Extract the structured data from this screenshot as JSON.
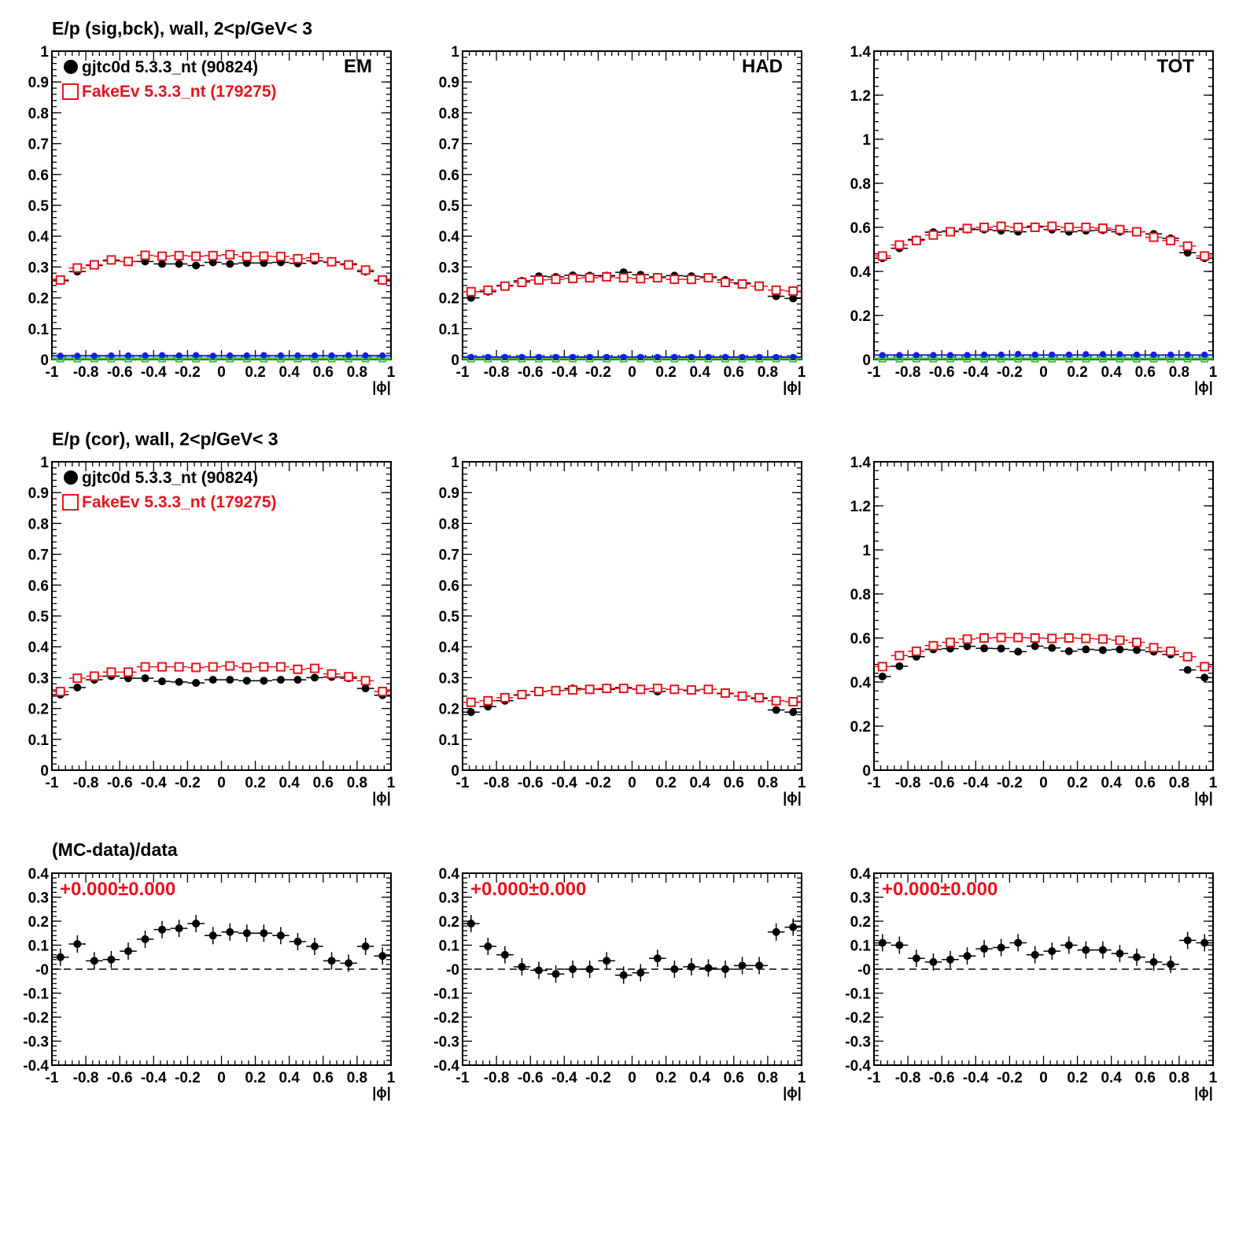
{
  "rows": [
    {
      "title": "E/p (sig,bck), wall,  2<p/GeV< 3"
    },
    {
      "title": "E/p (cor), wall,  2<p/GeV< 3"
    },
    {
      "title": "(MC-data)/data"
    }
  ],
  "x_axis": {
    "label": "|ϕ|",
    "ticks": [
      "-1",
      "-0.8",
      "-0.6",
      "-0.4",
      "-0.2",
      "0",
      "0.2",
      "0.4",
      "0.6",
      "0.8",
      "1"
    ],
    "range": [
      -1,
      1
    ]
  },
  "legend": {
    "data_label": "gjtc0d 5.3.3_nt (90824)",
    "mc_label": "FakeEv 5.3.3_nt (179275)"
  },
  "colors": {
    "data": "#000000",
    "mc": "#e8141e",
    "blue": "#1a1ae6",
    "green": "#2ec82e",
    "stat": "#e8141e"
  },
  "chart_data": [
    {
      "type": "scatter",
      "row": 0,
      "col": 0,
      "panel_label": "EM",
      "legend": true,
      "ylim": [
        0,
        1
      ],
      "yticks": [
        "0",
        "0.1",
        "0.2",
        "0.3",
        "0.4",
        "0.5",
        "0.6",
        "0.7",
        "0.8",
        "0.9",
        "1"
      ],
      "x": [
        -0.95,
        -0.85,
        -0.75,
        -0.65,
        -0.55,
        -0.45,
        -0.35,
        -0.25,
        -0.15,
        -0.05,
        0.05,
        0.15,
        0.25,
        0.35,
        0.45,
        0.55,
        0.65,
        0.75,
        0.85,
        0.95
      ],
      "series": [
        {
          "name": "gjtc0d 5.3.3_nt (90824)",
          "values": [
            0.255,
            0.285,
            0.305,
            0.32,
            0.318,
            0.318,
            0.31,
            0.31,
            0.305,
            0.315,
            0.31,
            0.313,
            0.313,
            0.315,
            0.312,
            0.32,
            0.315,
            0.31,
            0.285,
            0.255
          ]
        },
        {
          "name": "FakeEv 5.3.3_nt (179275)",
          "values": [
            0.258,
            0.297,
            0.307,
            0.323,
            0.318,
            0.338,
            0.335,
            0.337,
            0.335,
            0.337,
            0.34,
            0.334,
            0.335,
            0.334,
            0.327,
            0.33,
            0.317,
            0.307,
            0.29,
            0.258
          ]
        },
        {
          "values": [
            0.012,
            0.012,
            0.012,
            0.013,
            0.013,
            0.013,
            0.014,
            0.013,
            0.014,
            0.012,
            0.013,
            0.013,
            0.014,
            0.013,
            0.013,
            0.013,
            0.013,
            0.014,
            0.013,
            0.013
          ]
        },
        {
          "values": [
            0.003,
            0.003,
            0.003,
            0.003,
            0.003,
            0.003,
            0.003,
            0.003,
            0.003,
            0.003,
            0.003,
            0.003,
            0.003,
            0.003,
            0.003,
            0.003,
            0.003,
            0.003,
            0.003,
            0.003
          ]
        }
      ]
    },
    {
      "type": "scatter",
      "row": 0,
      "col": 1,
      "panel_label": "HAD",
      "legend": false,
      "ylim": [
        0,
        1
      ],
      "yticks": [
        "0",
        "0.1",
        "0.2",
        "0.3",
        "0.4",
        "0.5",
        "0.6",
        "0.7",
        "0.8",
        "0.9",
        "1"
      ],
      "x": [
        -0.95,
        -0.85,
        -0.75,
        -0.65,
        -0.55,
        -0.45,
        -0.35,
        -0.25,
        -0.15,
        -0.05,
        0.05,
        0.15,
        0.25,
        0.35,
        0.45,
        0.55,
        0.65,
        0.75,
        0.85,
        0.95
      ],
      "series": [
        {
          "values": [
            0.2,
            0.22,
            0.24,
            0.255,
            0.27,
            0.268,
            0.273,
            0.272,
            0.272,
            0.283,
            0.275,
            0.268,
            0.272,
            0.27,
            0.268,
            0.258,
            0.248,
            0.238,
            0.205,
            0.198
          ]
        },
        {
          "values": [
            0.22,
            0.225,
            0.238,
            0.25,
            0.258,
            0.26,
            0.263,
            0.265,
            0.268,
            0.265,
            0.262,
            0.265,
            0.26,
            0.26,
            0.265,
            0.25,
            0.245,
            0.238,
            0.225,
            0.222
          ]
        },
        {
          "values": [
            0.008,
            0.008,
            0.008,
            0.008,
            0.008,
            0.008,
            0.008,
            0.008,
            0.008,
            0.008,
            0.008,
            0.008,
            0.008,
            0.008,
            0.008,
            0.008,
            0.008,
            0.008,
            0.008,
            0.008
          ]
        },
        {
          "values": [
            0.003,
            0.003,
            0.003,
            0.003,
            0.003,
            0.003,
            0.003,
            0.003,
            0.003,
            0.003,
            0.003,
            0.003,
            0.003,
            0.003,
            0.003,
            0.003,
            0.003,
            0.003,
            0.003,
            0.003
          ]
        }
      ]
    },
    {
      "type": "scatter",
      "row": 0,
      "col": 2,
      "panel_label": "TOT",
      "legend": false,
      "ylim": [
        0,
        1.4
      ],
      "yticks": [
        "0",
        "0.2",
        "0.4",
        "0.6",
        "0.8",
        "1",
        "1.2",
        "1.4"
      ],
      "x": [
        -0.95,
        -0.85,
        -0.75,
        -0.65,
        -0.55,
        -0.45,
        -0.35,
        -0.25,
        -0.15,
        -0.05,
        0.05,
        0.15,
        0.25,
        0.35,
        0.45,
        0.55,
        0.65,
        0.75,
        0.85,
        0.95
      ],
      "series": [
        {
          "values": [
            0.46,
            0.505,
            0.545,
            0.578,
            0.583,
            0.59,
            0.59,
            0.585,
            0.58,
            0.605,
            0.59,
            0.58,
            0.585,
            0.587,
            0.58,
            0.58,
            0.57,
            0.55,
            0.485,
            0.46
          ]
        },
        {
          "values": [
            0.47,
            0.52,
            0.54,
            0.565,
            0.58,
            0.595,
            0.6,
            0.605,
            0.6,
            0.6,
            0.605,
            0.6,
            0.6,
            0.596,
            0.59,
            0.58,
            0.555,
            0.54,
            0.515,
            0.47
          ]
        },
        {
          "values": [
            0.02,
            0.02,
            0.02,
            0.02,
            0.02,
            0.02,
            0.022,
            0.022,
            0.025,
            0.022,
            0.022,
            0.022,
            0.024,
            0.024,
            0.024,
            0.022,
            0.022,
            0.022,
            0.022,
            0.022
          ]
        },
        {
          "values": [
            0.004,
            0.004,
            0.004,
            0.004,
            0.004,
            0.004,
            0.004,
            0.004,
            0.004,
            0.004,
            0.004,
            0.004,
            0.004,
            0.004,
            0.004,
            0.004,
            0.004,
            0.004,
            0.004,
            0.004
          ]
        }
      ]
    },
    {
      "type": "scatter",
      "row": 1,
      "col": 0,
      "panel_label": "",
      "legend": true,
      "ylim": [
        0,
        1
      ],
      "yticks": [
        "0",
        "0.1",
        "0.2",
        "0.3",
        "0.4",
        "0.5",
        "0.6",
        "0.7",
        "0.8",
        "0.9",
        "1"
      ],
      "x": [
        -0.95,
        -0.85,
        -0.75,
        -0.65,
        -0.55,
        -0.45,
        -0.35,
        -0.25,
        -0.15,
        -0.05,
        0.05,
        0.15,
        0.25,
        0.35,
        0.45,
        0.55,
        0.65,
        0.75,
        0.85,
        0.95
      ],
      "series": [
        {
          "name": "gjtc0d 5.3.3_nt (90824)",
          "values": [
            0.245,
            0.268,
            0.293,
            0.305,
            0.298,
            0.298,
            0.288,
            0.286,
            0.283,
            0.293,
            0.293,
            0.29,
            0.29,
            0.293,
            0.293,
            0.3,
            0.302,
            0.298,
            0.265,
            0.243
          ]
        },
        {
          "name": "FakeEv 5.3.3_nt (179275)",
          "values": [
            0.255,
            0.298,
            0.305,
            0.318,
            0.318,
            0.335,
            0.335,
            0.335,
            0.333,
            0.335,
            0.338,
            0.333,
            0.335,
            0.335,
            0.327,
            0.33,
            0.312,
            0.303,
            0.29,
            0.255
          ]
        }
      ]
    },
    {
      "type": "scatter",
      "row": 1,
      "col": 1,
      "panel_label": "",
      "legend": false,
      "ylim": [
        0,
        1
      ],
      "yticks": [
        "0",
        "0.1",
        "0.2",
        "0.3",
        "0.4",
        "0.5",
        "0.6",
        "0.7",
        "0.8",
        "0.9",
        "1"
      ],
      "x": [
        -0.95,
        -0.85,
        -0.75,
        -0.65,
        -0.55,
        -0.45,
        -0.35,
        -0.25,
        -0.15,
        -0.05,
        0.05,
        0.15,
        0.25,
        0.35,
        0.45,
        0.55,
        0.65,
        0.75,
        0.85,
        0.95
      ],
      "series": [
        {
          "values": [
            0.188,
            0.206,
            0.225,
            0.243,
            0.255,
            0.258,
            0.265,
            0.263,
            0.262,
            0.268,
            0.263,
            0.255,
            0.262,
            0.258,
            0.262,
            0.248,
            0.24,
            0.232,
            0.195,
            0.188
          ]
        },
        {
          "values": [
            0.22,
            0.225,
            0.235,
            0.245,
            0.255,
            0.258,
            0.26,
            0.262,
            0.265,
            0.265,
            0.262,
            0.265,
            0.262,
            0.26,
            0.262,
            0.25,
            0.24,
            0.235,
            0.225,
            0.222
          ]
        }
      ]
    },
    {
      "type": "scatter",
      "row": 1,
      "col": 2,
      "panel_label": "",
      "legend": false,
      "ylim": [
        0,
        1.4
      ],
      "yticks": [
        "0",
        "0.2",
        "0.4",
        "0.6",
        "0.8",
        "1",
        "1.2",
        "1.4"
      ],
      "x": [
        -0.95,
        -0.85,
        -0.75,
        -0.65,
        -0.55,
        -0.45,
        -0.35,
        -0.25,
        -0.15,
        -0.05,
        0.05,
        0.15,
        0.25,
        0.35,
        0.45,
        0.55,
        0.65,
        0.75,
        0.85,
        0.95
      ],
      "series": [
        {
          "values": [
            0.425,
            0.472,
            0.515,
            0.548,
            0.552,
            0.562,
            0.553,
            0.552,
            0.538,
            0.563,
            0.555,
            0.54,
            0.548,
            0.545,
            0.548,
            0.545,
            0.538,
            0.525,
            0.455,
            0.42
          ]
        },
        {
          "values": [
            0.47,
            0.52,
            0.54,
            0.565,
            0.58,
            0.595,
            0.6,
            0.602,
            0.602,
            0.6,
            0.598,
            0.6,
            0.598,
            0.595,
            0.59,
            0.58,
            0.556,
            0.54,
            0.515,
            0.47
          ]
        }
      ]
    },
    {
      "type": "scatter",
      "row": 2,
      "col": 0,
      "stat_text": "+0.000±0.000",
      "ylim": [
        -0.4,
        0.4
      ],
      "yticks": [
        "-0.4",
        "-0.3",
        "-0.2",
        "-0.1",
        "-0",
        "0.1",
        "0.2",
        "0.3",
        "0.4"
      ],
      "x": [
        -0.95,
        -0.85,
        -0.75,
        -0.65,
        -0.55,
        -0.45,
        -0.35,
        -0.25,
        -0.15,
        -0.05,
        0.05,
        0.15,
        0.25,
        0.35,
        0.45,
        0.55,
        0.65,
        0.75,
        0.85,
        0.95
      ],
      "y": [
        0.05,
        0.105,
        0.035,
        0.04,
        0.075,
        0.125,
        0.165,
        0.17,
        0.19,
        0.14,
        0.155,
        0.15,
        0.15,
        0.14,
        0.115,
        0.095,
        0.035,
        0.025,
        0.095,
        0.055
      ]
    },
    {
      "type": "scatter",
      "row": 2,
      "col": 1,
      "stat_text": "+0.000±0.000",
      "ylim": [
        -0.4,
        0.4
      ],
      "yticks": [
        "-0.4",
        "-0.3",
        "-0.2",
        "-0.1",
        "-0",
        "0.1",
        "0.2",
        "0.3",
        "0.4"
      ],
      "x": [
        -0.95,
        -0.85,
        -0.75,
        -0.65,
        -0.55,
        -0.45,
        -0.35,
        -0.25,
        -0.15,
        -0.05,
        0.05,
        0.15,
        0.25,
        0.35,
        0.45,
        0.55,
        0.65,
        0.75,
        0.85,
        0.95
      ],
      "y": [
        0.19,
        0.095,
        0.06,
        0.01,
        -0.005,
        -0.02,
        0.0,
        0.0,
        0.035,
        -0.025,
        -0.015,
        0.045,
        0.0,
        0.01,
        0.005,
        0.0,
        0.015,
        0.015,
        0.155,
        0.175
      ]
    },
    {
      "type": "scatter",
      "row": 2,
      "col": 2,
      "stat_text": "+0.000±0.000",
      "ylim": [
        -0.4,
        0.4
      ],
      "yticks": [
        "-0.4",
        "-0.3",
        "-0.2",
        "-0.1",
        "-0",
        "0.1",
        "0.2",
        "0.3",
        "0.4"
      ],
      "x": [
        -0.95,
        -0.85,
        -0.75,
        -0.65,
        -0.55,
        -0.45,
        -0.35,
        -0.25,
        -0.15,
        -0.05,
        0.05,
        0.15,
        0.25,
        0.35,
        0.45,
        0.55,
        0.65,
        0.75,
        0.85,
        0.95
      ],
      "y": [
        0.11,
        0.1,
        0.045,
        0.03,
        0.04,
        0.055,
        0.085,
        0.09,
        0.11,
        0.06,
        0.075,
        0.1,
        0.08,
        0.08,
        0.065,
        0.05,
        0.03,
        0.02,
        0.12,
        0.11
      ]
    }
  ]
}
